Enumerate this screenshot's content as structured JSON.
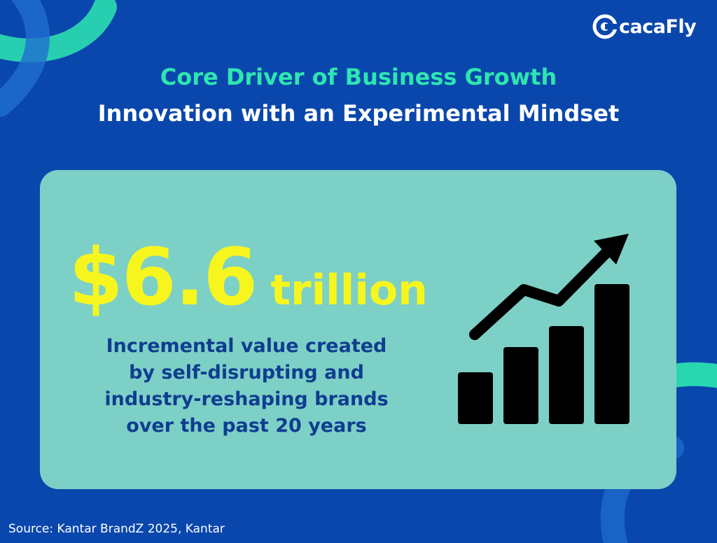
{
  "brand": {
    "name": "cacaFly"
  },
  "header": {
    "title": "Core Driver of Business Growth",
    "subtitle": "Innovation with an Experimental Mindset"
  },
  "stat": {
    "amount": "$6.6",
    "unit": "trillion",
    "description_lines": [
      "Incremental value created",
      "by self-disrupting and",
      "industry-reshaping brands",
      "over the past 20 years"
    ]
  },
  "icon": {
    "name": "growth-chart-icon",
    "bar_levels": [
      0.37,
      0.55,
      0.7,
      1.0
    ]
  },
  "footer": {
    "source": "Source: Kantar BrandZ 2025, Kantar"
  },
  "colors": {
    "background": "#0a47ad",
    "card": "#7dd0c6",
    "accent_teal": "#2ee6b0",
    "highlight_yellow": "#f6f61e",
    "text_blue": "#0f3d8f",
    "icon": "#000000"
  }
}
